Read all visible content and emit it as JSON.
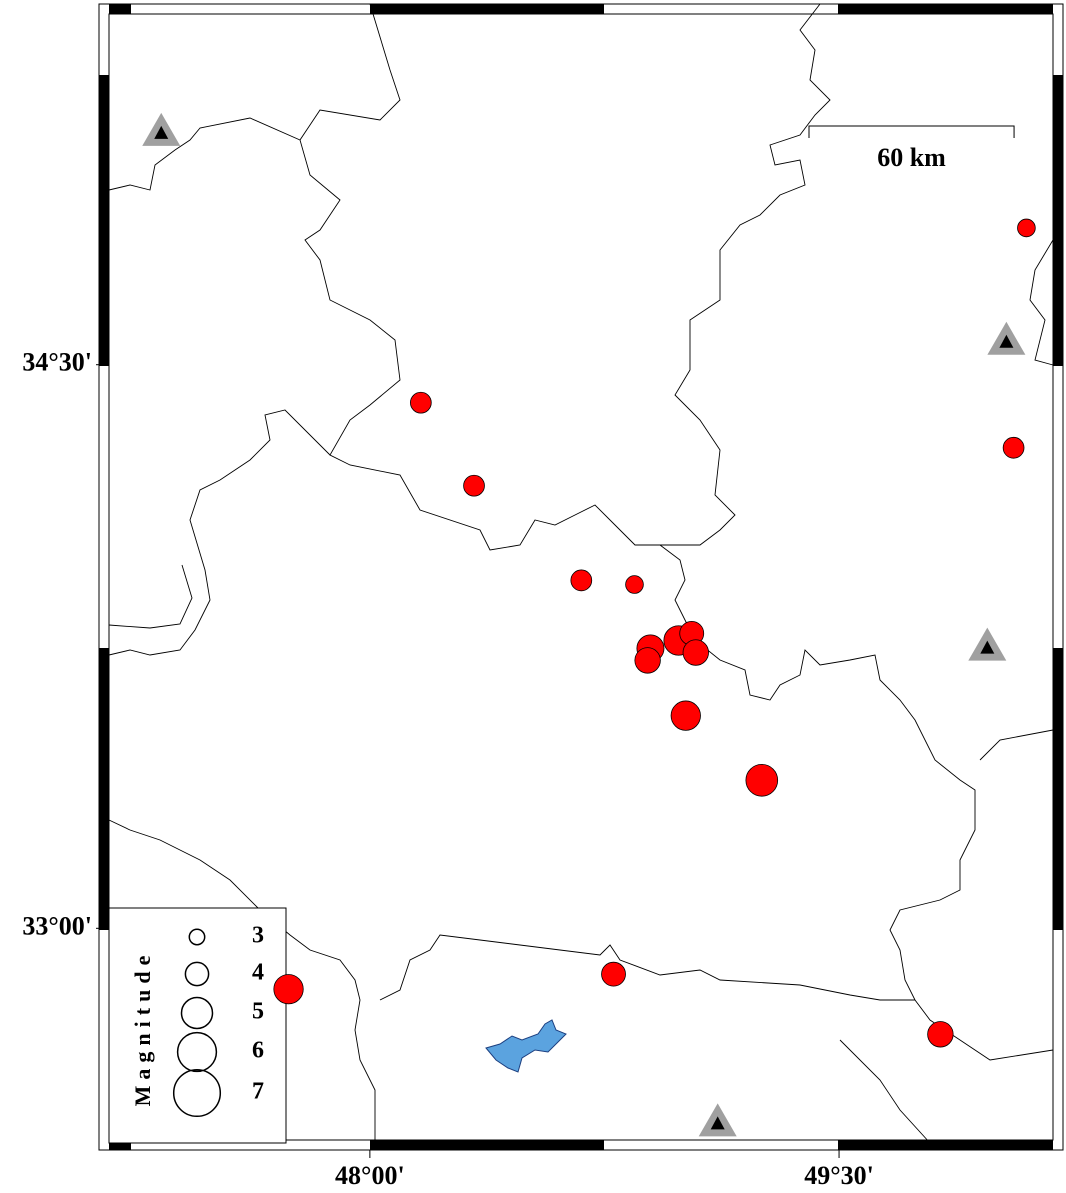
{
  "chart_data": {
    "type": "bubble",
    "x": [
      48.163,
      48.333,
      48.676,
      48.846,
      48.897,
      48.888,
      48.987,
      49.029,
      49.042,
      49.01,
      49.253,
      48.779,
      47.74,
      49.824,
      50.099,
      50.058
    ],
    "y": [
      34.399,
      34.178,
      33.926,
      33.915,
      33.745,
      33.713,
      33.766,
      33.785,
      33.734,
      33.566,
      33.394,
      32.878,
      32.838,
      32.718,
      34.864,
      34.279
    ],
    "sizes": [
      3.7,
      3.7,
      3.7,
      3.3,
      4.5,
      4.3,
      4.8,
      4.1,
      4.3,
      4.8,
      5.1,
      4.1,
      4.8,
      4.3,
      3.3,
      3.7
    ],
    "color": "#ff0000",
    "stations": {
      "x": [
        47.333,
        50.035,
        49.974,
        49.112
      ],
      "y": [
        35.117,
        34.561,
        33.747,
        32.481
      ]
    },
    "xlim": [
      47.15,
      50.2
    ],
    "ylim": [
      32.41,
      35.46
    ],
    "xticks": [
      {
        "value": 48,
        "label": "48°00'"
      },
      {
        "value": 49.5,
        "label": "49°30'"
      }
    ],
    "yticks": [
      {
        "value": 33,
        "label": "33°00'"
      },
      {
        "value": 34.5,
        "label": "34°30'"
      }
    ],
    "scale_bar": {
      "value": 60,
      "label": "60 km"
    },
    "legend": {
      "title": "Magnitude",
      "values": [
        3,
        4,
        5,
        6,
        7
      ]
    }
  }
}
